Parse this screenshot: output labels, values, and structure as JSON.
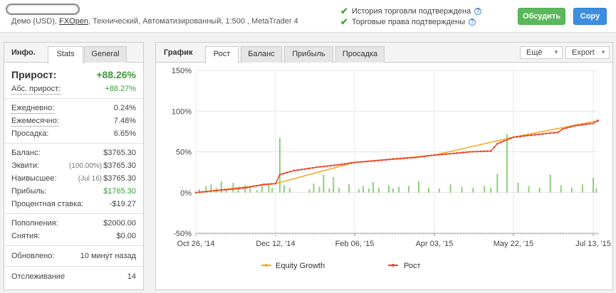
{
  "header": {
    "account_line_prefix": "Демо (USD), ",
    "broker": "FXOpen",
    "account_line_suffix": ", Технический, Автоматизированный, 1:500 , MetaTrader 4",
    "verify_history": "История торговли подтверждена",
    "verify_rights": "Торговые права подтверждены",
    "discuss_button": "Обсудить",
    "copy_button": "Copy",
    "help_icon": "?"
  },
  "info": {
    "title": "Инфо.",
    "tabs": [
      "Stats",
      "General"
    ],
    "growth_label": "Прирост:",
    "growth_value": "+88.26%",
    "abs_growth_label": "Абс. прирост:",
    "abs_growth_value": "+88.27%",
    "daily_label": "Ежедневно:",
    "daily_value": "0.24%",
    "monthly_label": "Ежемесячно:",
    "monthly_value": "7.48%",
    "drawdown_label": "Просадка:",
    "drawdown_value": "6.65%",
    "balance_label": "Баланс:",
    "balance_value": "$3765.30",
    "equity_label": "Эквити:",
    "equity_sub": "(100.00%)",
    "equity_value": "$3765.30",
    "highest_label": "Наивысшее:",
    "highest_sub": "(Jul 16)",
    "highest_value": "$3765.30",
    "profit_label": "Прибыль:",
    "profit_value": "$1765.30",
    "interest_label": "Процентная ставка:",
    "interest_value": "-$19.27",
    "deposits_label": "Пополнения:",
    "deposits_value": "$2000.00",
    "withdrawals_label": "Снятия:",
    "withdrawals_value": "$0.00",
    "updated_label": "Обновлено:",
    "updated_value": "10 минут назад",
    "tracking_label": "Отслеживание",
    "tracking_value": "14"
  },
  "chart_panel": {
    "title": "График",
    "tabs": [
      "Рост",
      "Баланс",
      "Прибыль",
      "Просадка"
    ],
    "more_dropdown": "Ещё",
    "export_dropdown": "Export"
  },
  "colors": {
    "growth_line": "#e8462a",
    "equity_line": "#f5a623",
    "bars": "#8dd07a",
    "positive": "#3a9c3a",
    "discuss_btn": "#5cb85c",
    "copy_btn": "#3d8ee0"
  },
  "chart_data": {
    "type": "line",
    "ylim": [
      -50,
      150
    ],
    "y_ticks": [
      "150%",
      "100%",
      "50%",
      "0%",
      "-50%"
    ],
    "y_tick_values": [
      150,
      100,
      50,
      0,
      -50
    ],
    "x_ticks": [
      "Oct 26, '14",
      "Dec 12, '14",
      "Feb 06, '15",
      "Apr 03, '15",
      "May 22, '15",
      "Jul 13, '15"
    ],
    "x_tick_dates": [
      "2014-10-26",
      "2014-12-12",
      "2015-02-06",
      "2015-04-03",
      "2015-05-22",
      "2015-07-13"
    ],
    "x_range": [
      "2014-10-26",
      "2015-07-16"
    ],
    "legend": [
      "Equity Growth",
      "Рост"
    ],
    "legend_position": "bottom",
    "series": [
      {
        "name": "Рост",
        "x": [
          "2014-10-26",
          "2014-11-10",
          "2014-11-25",
          "2014-12-05",
          "2014-12-12",
          "2014-12-15",
          "2014-12-25",
          "2015-01-10",
          "2015-01-25",
          "2015-02-06",
          "2015-02-20",
          "2015-03-05",
          "2015-03-20",
          "2015-04-03",
          "2015-04-15",
          "2015-04-25",
          "2015-05-08",
          "2015-05-12",
          "2015-05-22",
          "2015-06-05",
          "2015-06-20",
          "2015-06-23",
          "2015-07-01",
          "2015-07-13",
          "2015-07-16"
        ],
        "values": [
          0,
          3,
          6,
          10,
          11,
          22,
          27,
          31,
          34,
          37,
          39,
          41,
          43,
          46,
          48,
          50,
          51,
          60,
          68,
          71,
          74,
          78,
          82,
          85,
          88.26
        ]
      },
      {
        "name": "Equity Growth",
        "x": [
          "2014-10-26",
          "2014-12-12",
          "2015-02-06",
          "2015-04-03",
          "2015-05-22",
          "2015-07-16"
        ],
        "values": [
          0,
          11,
          37,
          46,
          68,
          88.27
        ]
      }
    ],
    "bars": {
      "name": "daily",
      "x": [
        "2014-10-28",
        "2014-11-01",
        "2014-11-04",
        "2014-11-07",
        "2014-11-10",
        "2014-11-13",
        "2014-11-17",
        "2014-11-20",
        "2014-11-24",
        "2014-11-27",
        "2014-12-01",
        "2014-12-04",
        "2014-12-08",
        "2014-12-10",
        "2014-12-15",
        "2014-12-18",
        "2014-12-22",
        "2015-01-05",
        "2015-01-08",
        "2015-01-12",
        "2015-01-15",
        "2015-01-19",
        "2015-01-22",
        "2015-01-26",
        "2015-02-02",
        "2015-02-09",
        "2015-02-12",
        "2015-02-16",
        "2015-02-19",
        "2015-02-23",
        "2015-03-02",
        "2015-03-05",
        "2015-03-09",
        "2015-03-16",
        "2015-03-23",
        "2015-03-30",
        "2015-04-06",
        "2015-04-13",
        "2015-04-20",
        "2015-04-27",
        "2015-05-04",
        "2015-05-08",
        "2015-05-12",
        "2015-05-18",
        "2015-05-25",
        "2015-06-01",
        "2015-06-08",
        "2015-06-15",
        "2015-06-22",
        "2015-06-29",
        "2015-07-06",
        "2015-07-13",
        "2015-07-15"
      ],
      "values": [
        4,
        8,
        10,
        6,
        14,
        5,
        12,
        7,
        9,
        5,
        3,
        8,
        11,
        6,
        67,
        9,
        6,
        4,
        11,
        7,
        22,
        5,
        19,
        6,
        10,
        4,
        8,
        5,
        13,
        6,
        9,
        5,
        7,
        8,
        14,
        6,
        5,
        10,
        7,
        6,
        8,
        6,
        23,
        72,
        12,
        8,
        6,
        22,
        9,
        6,
        10,
        18,
        5
      ]
    }
  }
}
